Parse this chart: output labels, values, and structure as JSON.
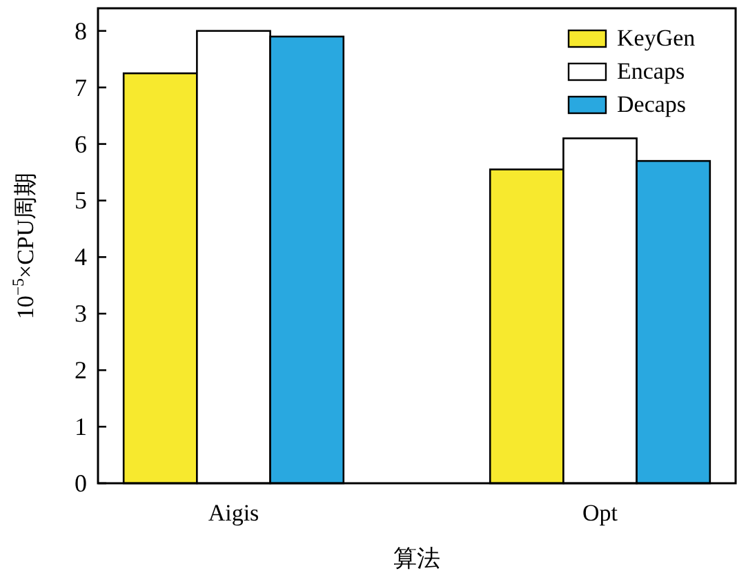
{
  "chart_data": {
    "type": "bar",
    "xlabel": "算法",
    "ylabel": "10$^{−5}$×CPU周期",
    "categories": [
      "Aigis",
      "Opt"
    ],
    "series": [
      {
        "name": "KeyGen",
        "color": "#f7e92e",
        "values": [
          7.25,
          5.55
        ]
      },
      {
        "name": "Encaps",
        "color": "#ffffff",
        "values": [
          8.0,
          6.1
        ]
      },
      {
        "name": "Decaps",
        "color": "#29a8e0",
        "values": [
          7.9,
          5.7
        ]
      }
    ],
    "ylim": [
      0,
      8.4
    ],
    "yticks": [
      0,
      1,
      2,
      3,
      4,
      5,
      6,
      7,
      8
    ],
    "legend": "top right",
    "grid": false
  }
}
